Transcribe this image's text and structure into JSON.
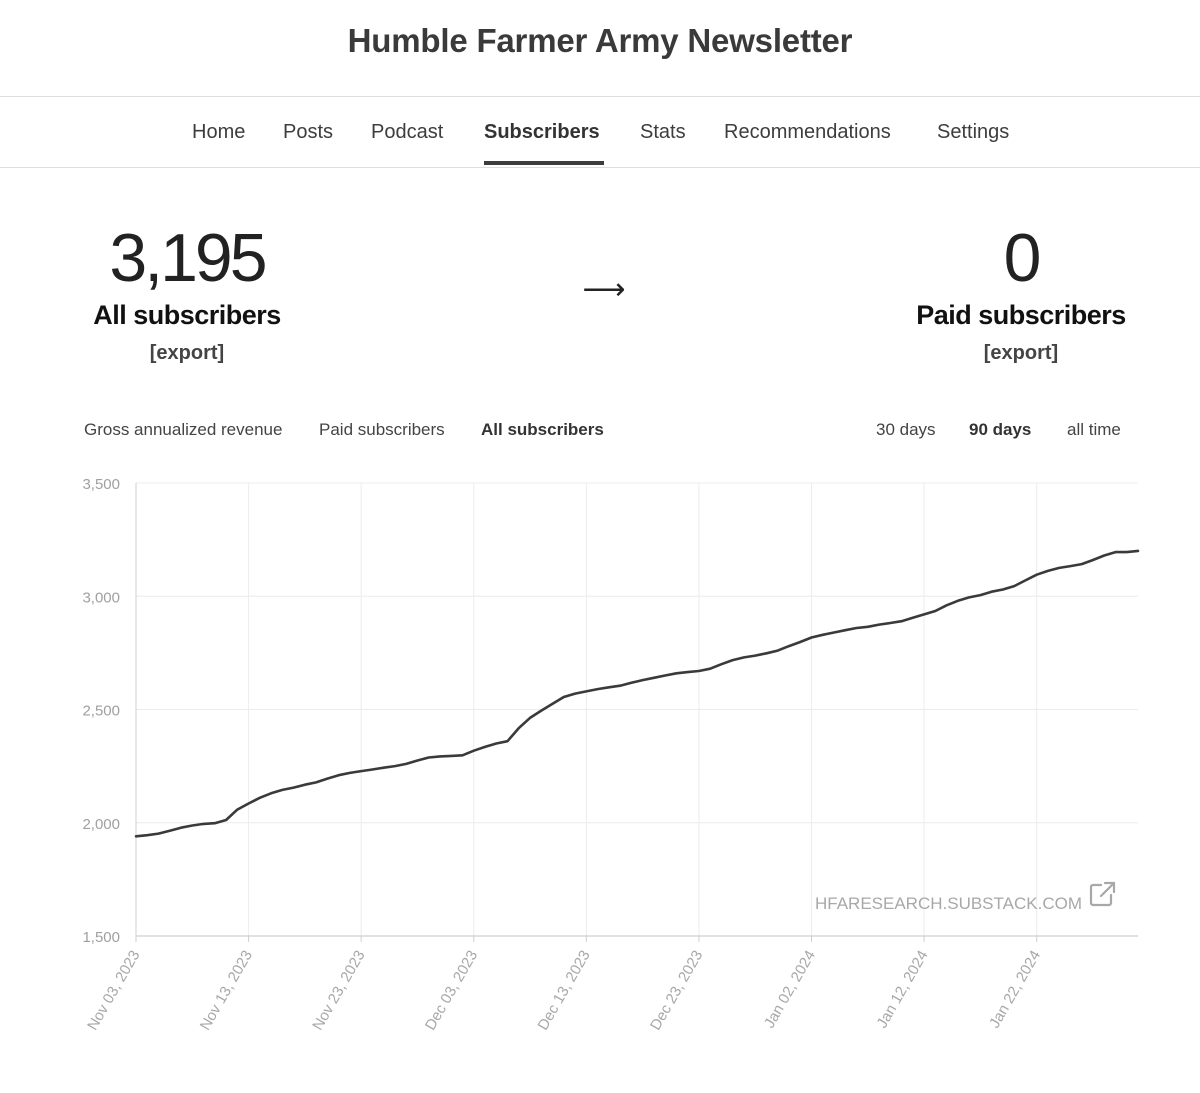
{
  "header": {
    "title": "Humble Farmer Army Newsletter"
  },
  "nav": {
    "items": [
      {
        "label": "Home"
      },
      {
        "label": "Posts"
      },
      {
        "label": "Podcast"
      },
      {
        "label": "Subscribers"
      },
      {
        "label": "Stats"
      },
      {
        "label": "Recommendations"
      },
      {
        "label": "Settings"
      }
    ],
    "active": "Subscribers"
  },
  "stats": {
    "all": {
      "value": "3,195",
      "label": "All subscribers",
      "export": "[export]"
    },
    "arrow": "⟶",
    "paid": {
      "value": "0",
      "label": "Paid subscribers",
      "export": "[export]"
    }
  },
  "metric_tabs": {
    "items": [
      "Gross annualized revenue",
      "Paid subscribers",
      "All subscribers"
    ],
    "active": "All subscribers"
  },
  "range_tabs": {
    "items": [
      "30 days",
      "90 days",
      "all time"
    ],
    "active": "90 days"
  },
  "watermark": {
    "text": "HFARESEARCH.SUBSTACK.COM",
    "icon": "external-link-icon"
  },
  "chart_data": {
    "type": "line",
    "title": "",
    "xlabel": "",
    "ylabel": "",
    "ylim": [
      1500,
      3500
    ],
    "yticks": [
      "1,500",
      "2,000",
      "2,500",
      "3,000",
      "3,500"
    ],
    "xticks": [
      "Nov 03, 2023",
      "Nov 13, 2023",
      "Nov 23, 2023",
      "Dec 03, 2023",
      "Dec 13, 2023",
      "Dec 23, 2023",
      "Jan 02, 2024",
      "Jan 12, 2024",
      "Jan 22, 2024"
    ],
    "grid": true,
    "line_color": "#3a3a3a",
    "series": [
      {
        "x": [
          "2023-11-03",
          "2023-11-04",
          "2023-11-05",
          "2023-11-06",
          "2023-11-07",
          "2023-11-08",
          "2023-11-09",
          "2023-11-10",
          "2023-11-11",
          "2023-11-12",
          "2023-11-13",
          "2023-11-14",
          "2023-11-15",
          "2023-11-16",
          "2023-11-17",
          "2023-11-18",
          "2023-11-19",
          "2023-11-20",
          "2023-11-21",
          "2023-11-22",
          "2023-11-23",
          "2023-11-24",
          "2023-11-25",
          "2023-11-26",
          "2023-11-27",
          "2023-11-28",
          "2023-11-29",
          "2023-11-30",
          "2023-12-01",
          "2023-12-02",
          "2023-12-03",
          "2023-12-04",
          "2023-12-05",
          "2023-12-06",
          "2023-12-07",
          "2023-12-08",
          "2023-12-09",
          "2023-12-10",
          "2023-12-11",
          "2023-12-12",
          "2023-12-13",
          "2023-12-14",
          "2023-12-15",
          "2023-12-16",
          "2023-12-17",
          "2023-12-18",
          "2023-12-19",
          "2023-12-20",
          "2023-12-21",
          "2023-12-22",
          "2023-12-23",
          "2023-12-24",
          "2023-12-25",
          "2023-12-26",
          "2023-12-27",
          "2023-12-28",
          "2023-12-29",
          "2023-12-30",
          "2023-12-31",
          "2024-01-01",
          "2024-01-02",
          "2024-01-03",
          "2024-01-04",
          "2024-01-05",
          "2024-01-06",
          "2024-01-07",
          "2024-01-08",
          "2024-01-09",
          "2024-01-10",
          "2024-01-11",
          "2024-01-12",
          "2024-01-13",
          "2024-01-14",
          "2024-01-15",
          "2024-01-16",
          "2024-01-17",
          "2024-01-18",
          "2024-01-19",
          "2024-01-20",
          "2024-01-21",
          "2024-01-22",
          "2024-01-23",
          "2024-01-24",
          "2024-01-25",
          "2024-01-26",
          "2024-01-27",
          "2024-01-28",
          "2024-01-29",
          "2024-01-30",
          "2024-01-31"
        ],
        "values": [
          1940,
          1945,
          1952,
          1965,
          1978,
          1988,
          1995,
          1998,
          2012,
          2058,
          2085,
          2110,
          2130,
          2145,
          2155,
          2168,
          2178,
          2195,
          2210,
          2220,
          2228,
          2235,
          2243,
          2250,
          2260,
          2275,
          2288,
          2293,
          2295,
          2298,
          2318,
          2335,
          2350,
          2360,
          2418,
          2463,
          2495,
          2525,
          2555,
          2570,
          2580,
          2590,
          2598,
          2605,
          2618,
          2630,
          2640,
          2650,
          2660,
          2665,
          2670,
          2680,
          2700,
          2718,
          2730,
          2738,
          2748,
          2760,
          2780,
          2798,
          2818,
          2830,
          2840,
          2850,
          2860,
          2865,
          2875,
          2882,
          2890,
          2905,
          2920,
          2935,
          2960,
          2980,
          2995,
          3005,
          3020,
          3030,
          3045,
          3070,
          3095,
          3112,
          3125,
          3133,
          3142,
          3160,
          3180,
          3195,
          3195,
          3200
        ]
      }
    ]
  }
}
